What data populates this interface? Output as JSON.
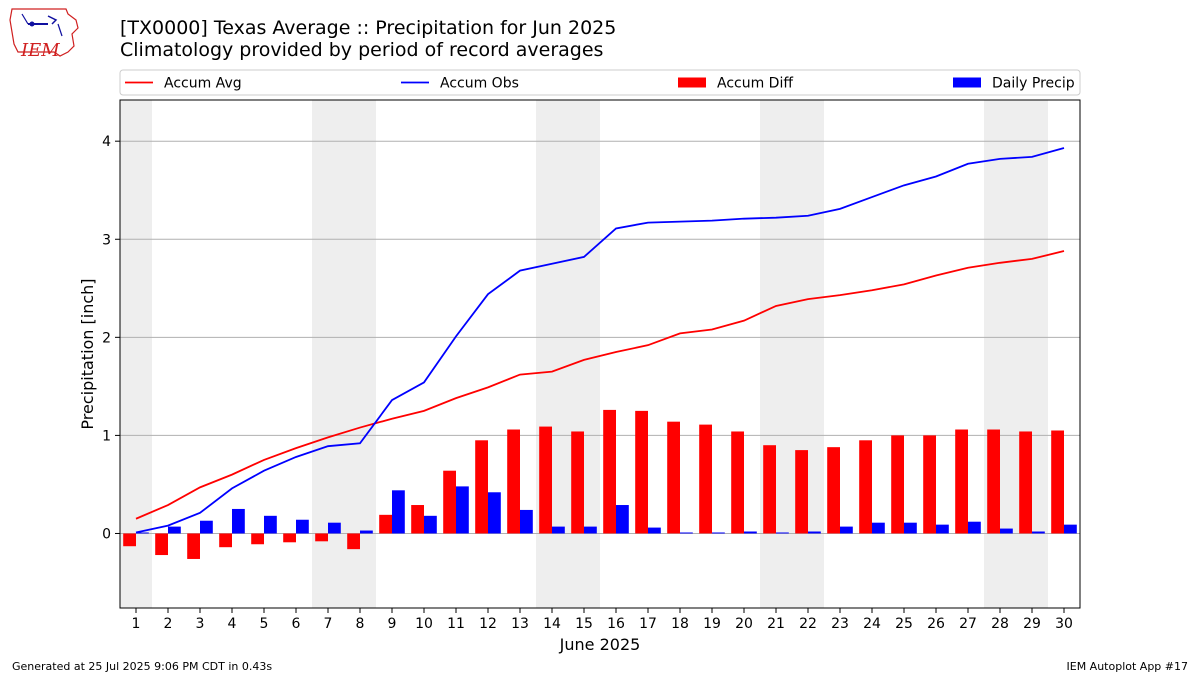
{
  "header": {
    "title_line1": "[TX0000] Texas Average :: Precipitation for Jun 2025",
    "title_line2": "Climatology provided by period of record averages"
  },
  "logo": {
    "text": "IEM",
    "icon": "iowa-state-outline-logo"
  },
  "footer": {
    "left": "Generated at 25 Jul 2025 9:06 PM CDT in 0.43s",
    "right": "IEM Autoplot App #17"
  },
  "chart_data": {
    "type": "bar",
    "title": "[TX0000] Texas Average :: Precipitation for Jun 2025",
    "subtitle": "Climatology provided by period of record averages",
    "xlabel": "June 2025",
    "ylabel": "Precipitation [inch]",
    "categories": [
      "1",
      "2",
      "3",
      "4",
      "5",
      "6",
      "7",
      "8",
      "9",
      "10",
      "11",
      "12",
      "13",
      "14",
      "15",
      "16",
      "17",
      "18",
      "19",
      "20",
      "21",
      "22",
      "23",
      "24",
      "25",
      "26",
      "27",
      "28",
      "29",
      "30"
    ],
    "x": [
      1,
      2,
      3,
      4,
      5,
      6,
      7,
      8,
      9,
      10,
      11,
      12,
      13,
      14,
      15,
      16,
      17,
      18,
      19,
      20,
      21,
      22,
      23,
      24,
      25,
      26,
      27,
      28,
      29,
      30
    ],
    "xlim": [
      0.5,
      30.5
    ],
    "ylim": [
      -0.76,
      4.42
    ],
    "yticks": [
      0,
      1,
      2,
      3,
      4
    ],
    "grid": "y",
    "legend_position": "top",
    "weekend_shading": [
      [
        0.5,
        1.5
      ],
      [
        6.5,
        8.5
      ],
      [
        13.5,
        15.5
      ],
      [
        20.5,
        22.5
      ],
      [
        27.5,
        29.5
      ]
    ],
    "series": [
      {
        "name": "Accum Avg",
        "kind": "line",
        "color": "#ff0000",
        "values": [
          0.15,
          0.29,
          0.47,
          0.6,
          0.75,
          0.87,
          0.98,
          1.08,
          1.17,
          1.25,
          1.38,
          1.49,
          1.62,
          1.65,
          1.77,
          1.85,
          1.92,
          2.04,
          2.08,
          2.17,
          2.32,
          2.39,
          2.43,
          2.48,
          2.54,
          2.63,
          2.71,
          2.76,
          2.8,
          2.88
        ]
      },
      {
        "name": "Accum Obs",
        "kind": "line",
        "color": "#0000ff",
        "values": [
          0.01,
          0.08,
          0.21,
          0.46,
          0.64,
          0.78,
          0.89,
          0.92,
          1.36,
          1.54,
          2.01,
          2.44,
          2.68,
          2.75,
          2.82,
          3.11,
          3.17,
          3.18,
          3.19,
          3.21,
          3.22,
          3.24,
          3.31,
          3.43,
          3.55,
          3.64,
          3.77,
          3.82,
          3.84,
          3.93
        ]
      },
      {
        "name": "Accum Diff",
        "kind": "bar",
        "color": "#ff0000",
        "values": [
          -0.13,
          -0.22,
          -0.26,
          -0.14,
          -0.11,
          -0.09,
          -0.08,
          -0.16,
          0.19,
          0.29,
          0.64,
          0.95,
          1.06,
          1.09,
          1.04,
          1.26,
          1.25,
          1.14,
          1.11,
          1.04,
          0.9,
          0.85,
          0.88,
          0.95,
          1.0,
          1.0,
          1.06,
          1.06,
          1.04,
          1.05
        ]
      },
      {
        "name": "Daily Precip",
        "kind": "bar",
        "color": "#0000ff",
        "values": [
          0.01,
          0.07,
          0.13,
          0.25,
          0.18,
          0.14,
          0.11,
          0.03,
          0.44,
          0.18,
          0.48,
          0.42,
          0.24,
          0.07,
          0.07,
          0.29,
          0.06,
          0.01,
          0.01,
          0.02,
          0.01,
          0.02,
          0.07,
          0.11,
          0.11,
          0.09,
          0.12,
          0.05,
          0.02,
          0.09
        ]
      }
    ]
  }
}
